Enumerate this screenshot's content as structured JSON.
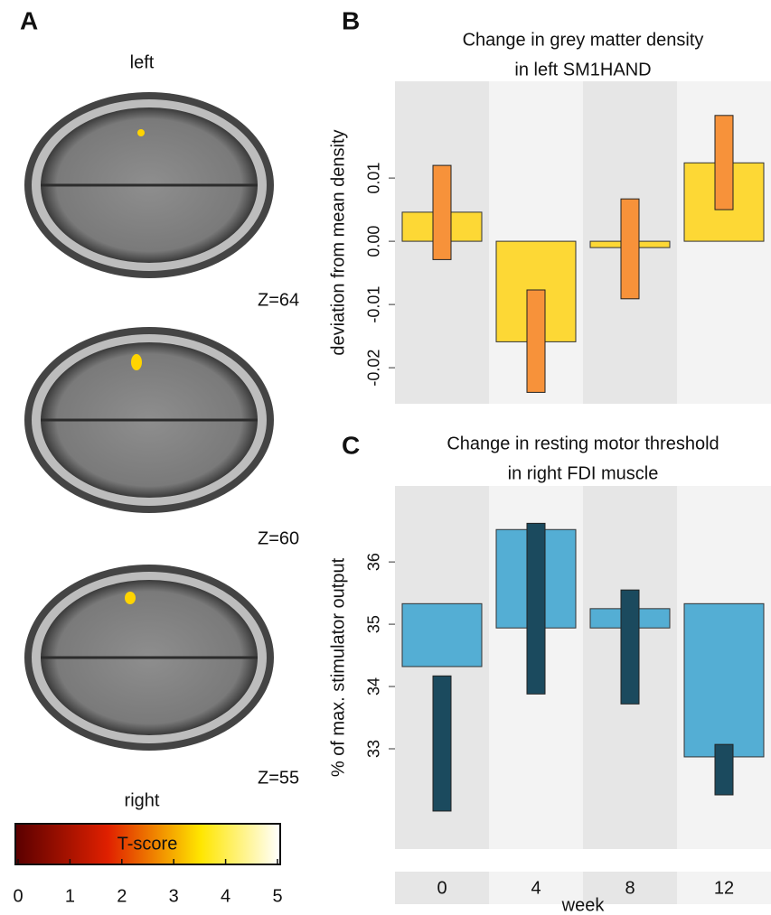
{
  "panel_a": {
    "label": "A",
    "top_label": "left",
    "bottom_label": "right",
    "slices": [
      "Z=64",
      "Z=60",
      "Z=55"
    ],
    "colorbar": {
      "label": "T-score",
      "lim": [
        0,
        5
      ],
      "ticks": [
        0,
        1,
        2,
        3,
        4,
        5
      ]
    }
  },
  "chart_data": [
    {
      "type": "bar",
      "panel": "B",
      "title_lines": [
        "Change in grey matter density",
        "in left SM1HAND"
      ],
      "ylabel": "deviation from mean density",
      "ylim": [
        -0.0257,
        0.0253
      ],
      "yticks": [
        -0.02,
        -0.01,
        {
          "value": 0,
          "label": "0.00"
        },
        0.01
      ],
      "series": [
        {
          "color": "#fdd835",
          "base": [
            0,
            0,
            0,
            0
          ],
          "values": [
            0.0046,
            -0.0159,
            -0.001,
            0.0124
          ]
        },
        {
          "color": "#f7923a",
          "low": [
            -0.0029,
            -0.0239,
            -0.0091,
            0.005
          ],
          "high": [
            0.012,
            -0.0077,
            0.0067,
            0.0199
          ]
        }
      ]
    },
    {
      "type": "bar",
      "panel": "C",
      "title_lines": [
        "Change in resting motor threshold",
        "in right FDI muscle"
      ],
      "ylabel": "% of max. stimulator output",
      "categories": [
        "0",
        "4",
        "8",
        "12"
      ],
      "xlabel": "week",
      "ylim": [
        31.39,
        37.22
      ],
      "yticks": [
        33,
        34,
        35,
        36
      ],
      "series": [
        {
          "color": "#54aed4",
          "base": [
            35.33,
            34.94,
            34.94,
            35.33
          ],
          "values": [
            34.32,
            36.52,
            35.25,
            32.87
          ]
        },
        {
          "color": "#1b4a5e",
          "low": [
            32.0,
            33.88,
            33.72,
            32.26
          ],
          "high": [
            34.17,
            36.62,
            35.55,
            33.07
          ]
        }
      ]
    }
  ]
}
